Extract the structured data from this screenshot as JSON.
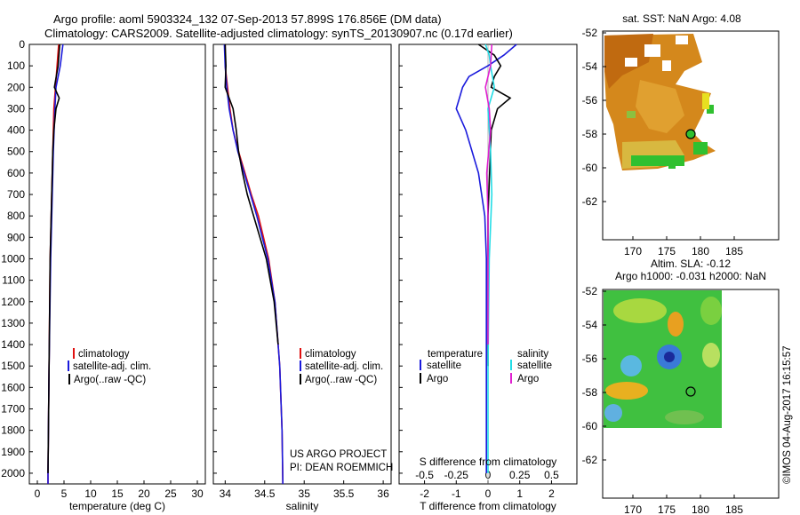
{
  "header": {
    "title_line1": "Argo profile: aoml 5903324_132 07-Sep-2013 57.899S 176.856E (DM data)",
    "title_line2": "Climatology: CARS2009. Satellite-adjusted climatology: synTS_20130907.nc (0.17d earlier)"
  },
  "colors": {
    "climatology": "#e01010",
    "satellite": "#1a1adc",
    "argo": "#000000",
    "satellite_salinity": "#22dde6",
    "argo_salinity": "#e020d0"
  },
  "depth_ticks": [
    "0",
    "100",
    "200",
    "300",
    "400",
    "500",
    "600",
    "700",
    "800",
    "900",
    "1000",
    "1100",
    "1200",
    "1300",
    "1400",
    "1500",
    "1600",
    "1700",
    "1800",
    "1900",
    "2000"
  ],
  "legend_labels": {
    "climatology": "climatology",
    "satellite_adj": "satellite-adj. clim.",
    "argo_raw": "Argo(..raw -QC)",
    "temperature": "temperature",
    "salinity": "salinity",
    "satellite": "satellite",
    "argo": "Argo"
  },
  "project_text": {
    "line1": "US ARGO PROJECT",
    "line2": "PI: DEAN ROEMMICH"
  },
  "map_sst": {
    "title": "sat. SST: NaN Argo: 4.08"
  },
  "map_sla": {
    "title_line1": "Altim. SLA: -0.12",
    "title_line2": "Argo h1000: -0.031 h2000: NaN"
  },
  "map_ticks": {
    "lat": [
      "-52",
      "-54",
      "-56",
      "-58",
      "-60",
      "-62"
    ],
    "lon": [
      "170",
      "175",
      "180",
      "185"
    ]
  },
  "watermark": "©IMOS 04-Aug-2017 16:15:57",
  "chart_data": [
    {
      "type": "line",
      "xlabel": "temperature (deg C)",
      "xticks": [
        "0",
        "5",
        "10",
        "15",
        "20",
        "25",
        "30"
      ],
      "xlim": [
        -1.5,
        31.5
      ],
      "ylim": [
        0,
        2050
      ],
      "series": [
        {
          "name": "climatology",
          "depth": [
            0,
            100,
            200,
            300,
            500,
            700,
            1000,
            1500,
            2000,
            2050
          ],
          "values": [
            4.0,
            3.7,
            3.4,
            3.1,
            2.9,
            2.7,
            2.4,
            2.2,
            2.0,
            2.0
          ]
        },
        {
          "name": "satellite-adj. clim.",
          "depth": [
            0,
            100,
            200,
            300,
            500,
            700,
            1000,
            1500,
            2000,
            2050
          ],
          "values": [
            4.8,
            4.3,
            3.5,
            3.3,
            3.0,
            2.8,
            2.5,
            2.2,
            2.0,
            2.0
          ]
        },
        {
          "name": "Argo(..raw -QC)",
          "depth": [
            0,
            100,
            200,
            250,
            300,
            400,
            500,
            700,
            1000,
            1500,
            2000
          ],
          "values": [
            4.2,
            3.9,
            3.2,
            4.1,
            3.5,
            3.1,
            2.9,
            2.7,
            2.4,
            2.2,
            2.0
          ]
        }
      ]
    },
    {
      "type": "line",
      "xlabel": "salinity",
      "xticks": [
        "34",
        "34.5",
        "35",
        "35.5",
        "36"
      ],
      "xlim": [
        33.85,
        36.1
      ],
      "ylim": [
        0,
        2050
      ],
      "series": [
        {
          "name": "climatology",
          "depth": [
            0,
            100,
            200,
            300,
            400,
            500,
            600,
            700,
            800,
            1000,
            1200,
            1500,
            1800,
            2050
          ],
          "values": [
            34.0,
            34.0,
            34.03,
            34.06,
            34.1,
            34.17,
            34.25,
            34.33,
            34.42,
            34.55,
            34.63,
            34.69,
            34.72,
            34.73
          ]
        },
        {
          "name": "satellite-adj. clim.",
          "depth": [
            0,
            100,
            200,
            300,
            400,
            500,
            600,
            700,
            800,
            1000,
            1200,
            1500,
            1800,
            2050
          ],
          "values": [
            33.99,
            34.0,
            34.02,
            34.05,
            34.1,
            34.16,
            34.24,
            34.32,
            34.4,
            34.54,
            34.63,
            34.69,
            34.72,
            34.73
          ]
        },
        {
          "name": "Argo(..raw -QC)",
          "depth": [
            0,
            100,
            200,
            300,
            400,
            500,
            600,
            700,
            800,
            1000,
            1200,
            1400
          ],
          "values": [
            34.0,
            34.01,
            34.0,
            34.1,
            34.14,
            34.17,
            34.22,
            34.28,
            34.36,
            34.52,
            34.62,
            34.67
          ]
        }
      ]
    },
    {
      "type": "line",
      "xlabel": "T difference from climatology",
      "xticks": [
        "-2",
        "-1",
        "0",
        "1",
        "2"
      ],
      "xlim": [
        -2.8,
        2.8
      ],
      "secondary_xlabel": "S difference from climatology",
      "secondary_xticks": [
        "-0.5",
        "-0.25",
        "0",
        "0.25",
        "0.5"
      ],
      "secondary_xlim": [
        -0.7,
        0.7
      ],
      "ylim": [
        0,
        2050
      ],
      "series": [
        {
          "name": "temperature satellite",
          "depth": [
            0,
            50,
            100,
            150,
            200,
            250,
            300,
            400,
            600,
            800,
            1000,
            1500,
            2000
          ],
          "values": [
            0.9,
            0.5,
            0.0,
            -0.6,
            -0.8,
            -0.9,
            -1.0,
            -0.7,
            -0.3,
            -0.1,
            -0.05,
            -0.05,
            -0.05
          ]
        },
        {
          "name": "temperature Argo",
          "depth": [
            0,
            50,
            100,
            150,
            200,
            250,
            300,
            400,
            600,
            800,
            1000,
            1500
          ],
          "values": [
            -0.3,
            0.2,
            0.4,
            0.2,
            0.1,
            0.7,
            0.3,
            0.1,
            0.05,
            0.0,
            0.0,
            0.0
          ]
        },
        {
          "name": "salinity satellite",
          "depth": [
            0,
            50,
            100,
            200,
            300,
            500,
            700,
            1000,
            1500,
            2000
          ],
          "values": [
            -0.02,
            0.01,
            0.02,
            0.05,
            0.0,
            0.02,
            0.03,
            0.01,
            0.0,
            0.0
          ]
        },
        {
          "name": "salinity Argo",
          "depth": [
            0,
            100,
            200,
            300,
            400,
            600,
            800,
            1000,
            1400
          ],
          "values": [
            0.03,
            0.02,
            -0.02,
            0.01,
            0.02,
            -0.01,
            0.0,
            0.0,
            0.0
          ]
        }
      ]
    }
  ]
}
